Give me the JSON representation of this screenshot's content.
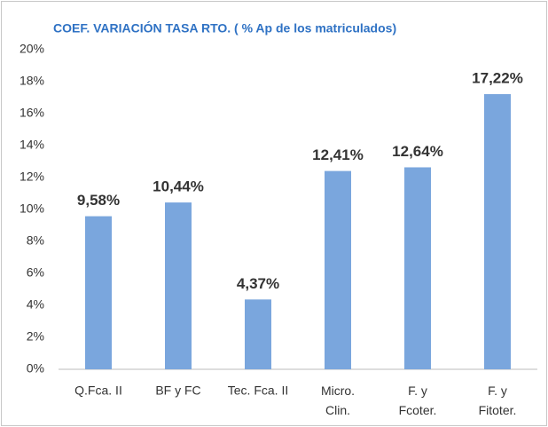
{
  "chart_data": {
    "type": "bar",
    "title": "COEF. VARIACIÓN TASA RTO. ( % Ap de los matriculados)",
    "categories": [
      "Q.Fca. II",
      "BF y FC",
      "Tec. Fca. II",
      "Micro.\nClin.",
      "F. y\nFcoter.",
      "F. y\nFitoter."
    ],
    "values": [
      9.58,
      10.44,
      4.37,
      12.41,
      12.64,
      17.22
    ],
    "value_labels": [
      "9,58%",
      "10,44%",
      "4,37%",
      "12,41%",
      "12,64%",
      "17,22%"
    ],
    "color": "#7aa6dd",
    "ylim": [
      0,
      20
    ],
    "yticks": [
      {
        "value": 0,
        "label": "0%"
      },
      {
        "value": 2,
        "label": "2%"
      },
      {
        "value": 4,
        "label": "4%"
      },
      {
        "value": 6,
        "label": "6%"
      },
      {
        "value": 8,
        "label": "8%"
      },
      {
        "value": 10,
        "label": "10%"
      },
      {
        "value": 12,
        "label": "12%"
      },
      {
        "value": 14,
        "label": "14%"
      },
      {
        "value": 16,
        "label": "16%"
      },
      {
        "value": 18,
        "label": "18%"
      },
      {
        "value": 20,
        "label": "20%"
      }
    ],
    "grid": false
  }
}
